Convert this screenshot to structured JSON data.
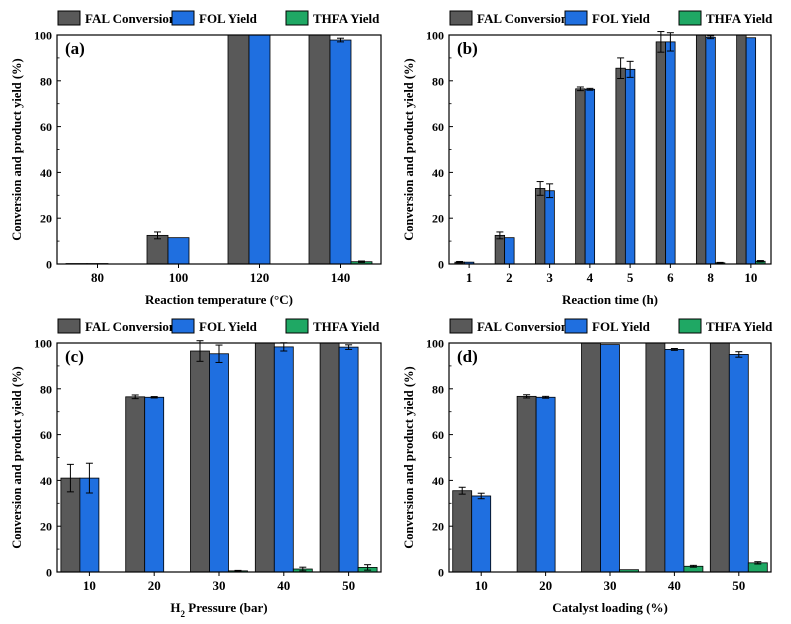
{
  "colors": {
    "fal": "#595959",
    "fol": "#1f6fe0",
    "thfa": "#1fa864",
    "axis": "#000000",
    "error": "#000000"
  },
  "legend": {
    "fal": "FAL Conversion",
    "fol": "FOL Yield",
    "thfa": "THFA Yield"
  },
  "chart_data": [
    {
      "panel": "(a)",
      "type": "bar",
      "xlabel": "Reaction temperature (°C)",
      "ylabel": "Conversion and product yield (%)",
      "ylim": [
        0,
        100
      ],
      "yticks": [
        0,
        20,
        40,
        60,
        80,
        100
      ],
      "categories": [
        "80",
        "100",
        "120",
        "140"
      ],
      "series": [
        {
          "name": "FAL Conversion",
          "values": [
            0.2,
            12.5,
            100,
            100
          ],
          "errors": [
            0,
            1.5,
            0,
            0
          ]
        },
        {
          "name": "FOL Yield",
          "values": [
            0.2,
            11.5,
            100,
            97.8
          ],
          "errors": [
            0,
            0,
            0,
            0.8
          ]
        },
        {
          "name": "THFA Yield",
          "values": [
            0,
            0,
            0,
            1.0
          ],
          "errors": [
            0,
            0,
            0,
            0.3
          ]
        }
      ]
    },
    {
      "panel": "(b)",
      "type": "bar",
      "xlabel": "Reaction time (h)",
      "ylabel": "Conversion and product yield (%)",
      "ylim": [
        0,
        100
      ],
      "yticks": [
        0,
        20,
        40,
        60,
        80,
        100
      ],
      "categories": [
        "1",
        "2",
        "3",
        "4",
        "5",
        "6",
        "8",
        "10"
      ],
      "series": [
        {
          "name": "FAL Conversion",
          "values": [
            0.8,
            12.5,
            33,
            76.5,
            85.5,
            97,
            100,
            100
          ],
          "errors": [
            0.3,
            1.5,
            3,
            0.8,
            4.5,
            4.5,
            0,
            0
          ]
        },
        {
          "name": "FOL Yield",
          "values": [
            0.8,
            11.5,
            32,
            76.3,
            85,
            97,
            99,
            98.8
          ],
          "errors": [
            0,
            0,
            3,
            0.4,
            3.5,
            4,
            0.6,
            0
          ]
        },
        {
          "name": "THFA Yield",
          "values": [
            0,
            0,
            0,
            0,
            0,
            0,
            0.5,
            1.2
          ],
          "errors": [
            0,
            0,
            0,
            0,
            0,
            0,
            0.2,
            0.3
          ]
        }
      ]
    },
    {
      "panel": "(c)",
      "type": "bar",
      "xlabel_prefix": "H",
      "xlabel_sub": "2",
      "xlabel_suffix": " Pressure (bar)",
      "ylabel": "Conversion and product yield (%)",
      "ylim": [
        0,
        100
      ],
      "yticks": [
        0,
        20,
        40,
        60,
        80,
        100
      ],
      "categories": [
        "10",
        "20",
        "30",
        "40",
        "50"
      ],
      "series": [
        {
          "name": "FAL Conversion",
          "values": [
            41,
            76.5,
            96.5,
            100,
            100
          ],
          "errors": [
            6,
            0.8,
            4.5,
            0,
            0
          ]
        },
        {
          "name": "FOL Yield",
          "values": [
            41,
            76.3,
            95.3,
            98.3,
            98.2
          ],
          "errors": [
            6.5,
            0.3,
            3.8,
            1.8,
            1
          ]
        },
        {
          "name": "THFA Yield",
          "values": [
            0,
            0,
            0.5,
            1.3,
            2
          ],
          "errors": [
            0,
            0,
            0.2,
            0.8,
            1.2
          ]
        }
      ]
    },
    {
      "panel": "(d)",
      "type": "bar",
      "xlabel": "Catalyst loading (%)",
      "ylabel": "Conversion and product yield (%)",
      "ylim": [
        0,
        100
      ],
      "yticks": [
        0,
        20,
        40,
        60,
        80,
        100
      ],
      "categories": [
        "10",
        "20",
        "30",
        "40",
        "50"
      ],
      "series": [
        {
          "name": "FAL Conversion",
          "values": [
            35.5,
            76.7,
            100,
            100,
            100
          ],
          "errors": [
            1.5,
            0.7,
            0,
            0,
            0
          ]
        },
        {
          "name": "FOL Yield",
          "values": [
            33.2,
            76.3,
            99.3,
            97.2,
            95
          ],
          "errors": [
            1.2,
            0.4,
            0,
            0.4,
            1.2
          ]
        },
        {
          "name": "THFA Yield",
          "values": [
            0,
            0,
            1.0,
            2.5,
            4
          ],
          "errors": [
            0,
            0,
            0,
            0.4,
            0.5
          ]
        }
      ]
    }
  ]
}
